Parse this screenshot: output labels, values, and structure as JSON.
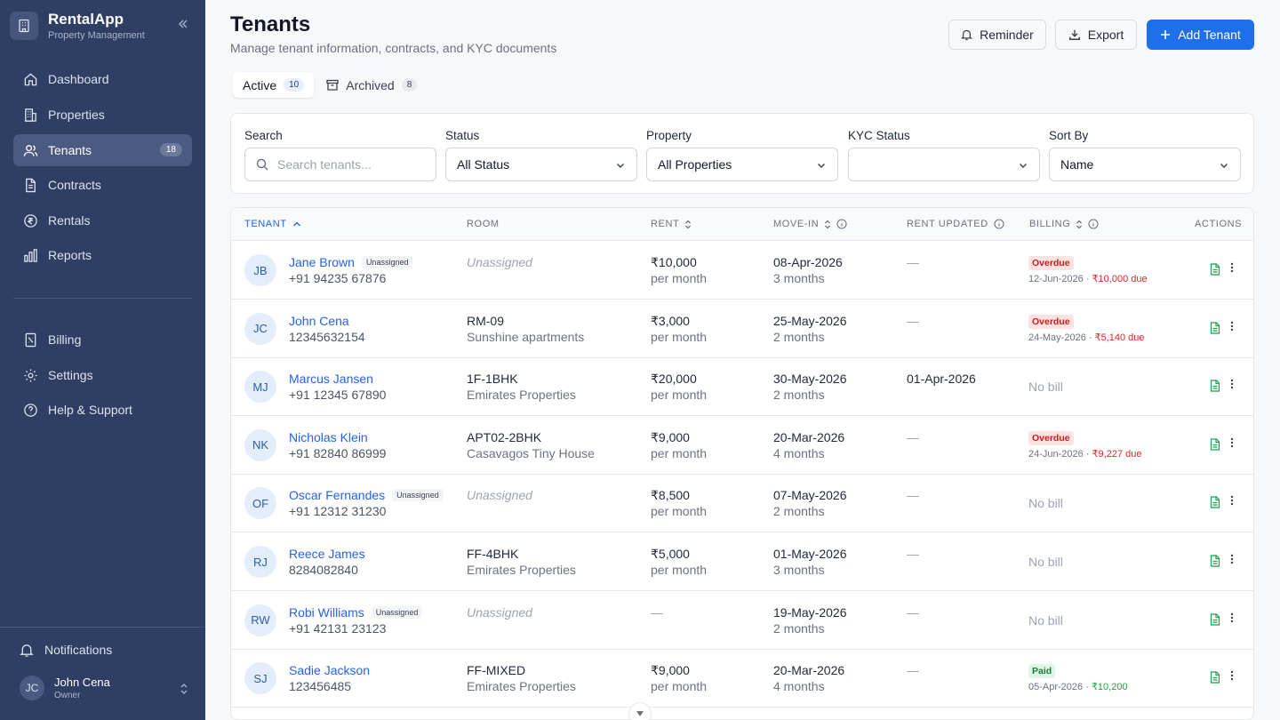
{
  "brand": {
    "name": "RentalApp",
    "subtitle": "Property Management"
  },
  "sidebar": {
    "nav": [
      {
        "label": "Dashboard",
        "icon": "home-icon"
      },
      {
        "label": "Properties",
        "icon": "building-icon"
      },
      {
        "label": "Tenants",
        "icon": "users-icon",
        "badge": "18",
        "active": true
      },
      {
        "label": "Contracts",
        "icon": "document-icon"
      },
      {
        "label": "Rentals",
        "icon": "rupee-icon"
      },
      {
        "label": "Reports",
        "icon": "bar-chart-icon"
      }
    ],
    "secondary": [
      {
        "label": "Billing",
        "icon": "receipt-icon"
      },
      {
        "label": "Settings",
        "icon": "gear-icon"
      },
      {
        "label": "Help & Support",
        "icon": "help-icon"
      }
    ],
    "notifications": "Notifications",
    "user": {
      "initials": "JC",
      "name": "John Cena",
      "role": "Owner"
    }
  },
  "header": {
    "title": "Tenants",
    "subtitle": "Manage tenant information, contracts, and KYC documents",
    "reminder": "Reminder",
    "export": "Export",
    "add": "Add Tenant"
  },
  "tabs": [
    {
      "label": "Active",
      "count": "10"
    },
    {
      "label": "Archived",
      "count": "8"
    }
  ],
  "filters": {
    "search_label": "Search",
    "search_placeholder": "Search tenants...",
    "status_label": "Status",
    "status_value": "All Status",
    "property_label": "Property",
    "property_value": "All Properties",
    "kyc_label": "KYC Status",
    "kyc_value": "",
    "sort_label": "Sort By",
    "sort_value": "Name"
  },
  "columns": {
    "tenant": "TENANT",
    "room": "ROOM",
    "rent": "RENT",
    "movein": "MOVE-IN",
    "rent_updated": "RENT UPDATED",
    "billing": "BILLING",
    "actions": "ACTIONS"
  },
  "rows": [
    {
      "initials": "JB",
      "name": "Jane Brown",
      "tag": "Unassigned",
      "phone": "+91 94235 67876",
      "room": "Unassigned",
      "property": "",
      "rent": "₹10,000",
      "rent_period": "per month",
      "movein": "08-Apr-2026",
      "duration": "3 months",
      "rent_updated": "—",
      "billing_status": "Overdue",
      "billing_date": "12-Jun-2026 · ",
      "billing_amount": "₹10,000 due"
    },
    {
      "initials": "JC",
      "name": "John Cena",
      "tag": "",
      "phone": "12345632154",
      "room": "RM-09",
      "property": "Sunshine apartments",
      "rent": "₹3,000",
      "rent_period": "per month",
      "movein": "25-May-2026",
      "duration": "2 months",
      "rent_updated": "—",
      "billing_status": "Overdue",
      "billing_date": "24-May-2026 · ",
      "billing_amount": "₹5,140 due"
    },
    {
      "initials": "MJ",
      "name": "Marcus Jansen",
      "tag": "",
      "phone": "+91 12345 67890",
      "room": "1F-1BHK",
      "property": "Emirates Properties",
      "rent": "₹20,000",
      "rent_period": "per month",
      "movein": "30-May-2026",
      "duration": "2 months",
      "rent_updated": "01-Apr-2026",
      "billing_status": "",
      "billing_none": "No bill"
    },
    {
      "initials": "NK",
      "name": "Nicholas Klein",
      "tag": "",
      "phone": "+91 82840 86999",
      "room": "APT02-2BHK",
      "property": "Casavagos Tiny House",
      "rent": "₹9,000",
      "rent_period": "per month",
      "movein": "20-Mar-2026",
      "duration": "4 months",
      "rent_updated": "—",
      "billing_status": "Overdue",
      "billing_date": "24-Jun-2026 · ",
      "billing_amount": "₹9,227 due"
    },
    {
      "initials": "OF",
      "name": "Oscar Fernandes",
      "tag": "Unassigned",
      "phone": "+91 12312 31230",
      "room": "Unassigned",
      "property": "",
      "rent": "₹8,500",
      "rent_period": "per month",
      "movein": "07-May-2026",
      "duration": "2 months",
      "rent_updated": "—",
      "billing_status": "",
      "billing_none": "No bill"
    },
    {
      "initials": "RJ",
      "name": "Reece James",
      "tag": "",
      "phone": "8284082840",
      "room": "FF-4BHK",
      "property": "Emirates Properties",
      "rent": "₹5,000",
      "rent_period": "per month",
      "movein": "01-May-2026",
      "duration": "3 months",
      "rent_updated": "—",
      "billing_status": "",
      "billing_none": "No bill"
    },
    {
      "initials": "RW",
      "name": "Robi Williams",
      "tag": "Unassigned",
      "phone": "+91 42131 23123",
      "room": "Unassigned",
      "property": "",
      "rent": "—",
      "rent_period": "",
      "movein": "19-May-2026",
      "duration": "2 months",
      "rent_updated": "—",
      "billing_status": "",
      "billing_none": "No bill"
    },
    {
      "initials": "SJ",
      "name": "Sadie Jackson",
      "tag": "",
      "phone": "123456485",
      "room": "FF-MIXED",
      "property": "Emirates Properties",
      "rent": "₹9,000",
      "rent_period": "per month",
      "movein": "20-Mar-2026",
      "duration": "4 months",
      "rent_updated": "—",
      "billing_status": "Paid",
      "billing_date": "05-Apr-2026 · ",
      "billing_amount": "₹10,200"
    }
  ]
}
